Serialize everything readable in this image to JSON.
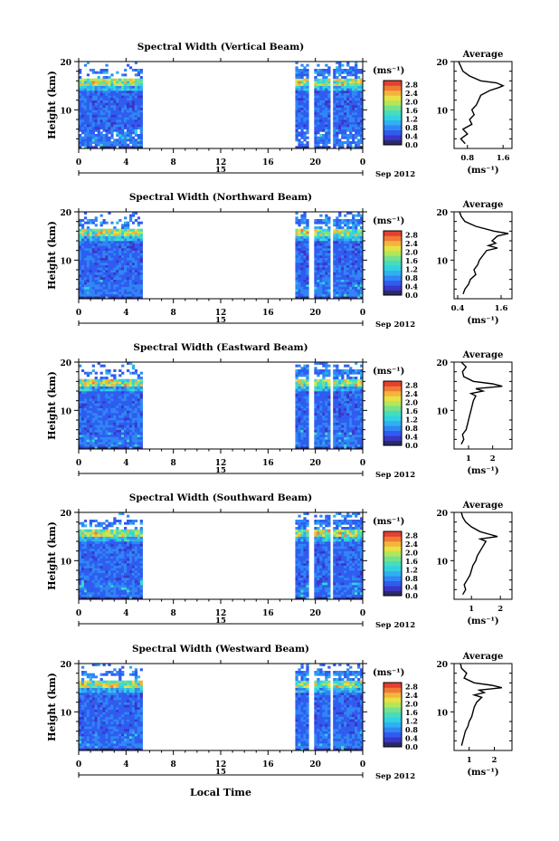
{
  "colors": {
    "background": "#ffffff",
    "axis": "#000000",
    "colormap": [
      "#2a2a6a",
      "#3a36c8",
      "#2f5cf0",
      "#2f86f4",
      "#30b0f0",
      "#30d2e2",
      "#46dcbe",
      "#76e08e",
      "#b0e85a",
      "#e8e044",
      "#f4b43c",
      "#f07a36",
      "#e44030"
    ]
  },
  "shared": {
    "xticks": [
      "0",
      "4",
      "8",
      "12",
      "16",
      "20",
      "0"
    ],
    "date_day": "15",
    "date_label": "Sep 2012",
    "yticks": [
      "20",
      "10"
    ],
    "ylabel": "Height (km)",
    "unit_label": "(ms⁻¹)",
    "colorbar_ticks": [
      "2.8",
      "2.4",
      "2.0",
      "1.6",
      "1.2",
      "0.8",
      "0.4",
      "0.0"
    ],
    "avg_title": "Average",
    "avg_xlabel": "(ms⁻¹)",
    "xlabel": "Local Time"
  },
  "chart_data": [
    {
      "type": "heatmap",
      "title": "Spectral Width (Vertical Beam)",
      "xlabel": "",
      "ylabel": "Height (km)",
      "x_range_hours": [
        0,
        24
      ],
      "y_range_km": [
        2,
        20
      ],
      "data_time_intervals_hours": [
        [
          0,
          5.4
        ],
        [
          18.3,
          24
        ]
      ],
      "colorbar_range": [
        0.0,
        3.0
      ],
      "average_profile": {
        "title": "Average",
        "xlabel": "(ms⁻¹)",
        "xticks": [
          "0.8",
          "1.6"
        ],
        "xlim": [
          0.5,
          1.8
        ],
        "height_km": [
          3,
          4,
          5,
          6,
          7,
          8,
          9,
          10,
          11,
          12,
          13,
          14,
          14.6,
          15,
          15.6,
          16,
          17,
          18,
          19,
          20
        ],
        "values": [
          0.75,
          0.65,
          0.8,
          0.7,
          0.9,
          0.85,
          0.95,
          0.9,
          1.0,
          1.05,
          1.1,
          1.3,
          1.5,
          1.6,
          1.45,
          1.1,
          0.85,
          0.7,
          0.65,
          0.6
        ]
      }
    },
    {
      "type": "heatmap",
      "title": "Spectral Width (Northward Beam)",
      "xlabel": "",
      "ylabel": "Height (km)",
      "x_range_hours": [
        0,
        24
      ],
      "y_range_km": [
        2,
        20
      ],
      "data_time_intervals_hours": [
        [
          0,
          5.4
        ],
        [
          18.3,
          24
        ]
      ],
      "colorbar_range": [
        0.0,
        3.0
      ],
      "average_profile": {
        "title": "Average",
        "xlabel": "(ms⁻¹)",
        "xticks": [
          "0.4",
          "1.6"
        ],
        "xlim": [
          0.3,
          1.9
        ],
        "height_km": [
          3,
          4,
          5,
          6,
          7,
          8,
          9,
          10,
          11,
          12,
          12.5,
          13,
          13.5,
          14,
          15,
          15.5,
          16,
          17,
          18,
          19,
          20
        ],
        "values": [
          0.55,
          0.6,
          0.7,
          0.75,
          0.9,
          0.85,
          0.95,
          1.0,
          1.1,
          1.2,
          1.5,
          1.25,
          1.45,
          1.35,
          1.5,
          1.8,
          1.4,
          0.9,
          0.6,
          0.5,
          0.45
        ]
      }
    },
    {
      "type": "heatmap",
      "title": "Spectral Width (Eastward Beam)",
      "xlabel": "",
      "ylabel": "Height (km)",
      "x_range_hours": [
        0,
        24
      ],
      "y_range_km": [
        2,
        20
      ],
      "data_time_intervals_hours": [
        [
          0,
          5.4
        ],
        [
          18.3,
          24
        ]
      ],
      "colorbar_range": [
        0.0,
        3.0
      ],
      "average_profile": {
        "title": "Average",
        "xlabel": "(ms⁻¹)",
        "xticks": [
          "1",
          "2"
        ],
        "xlim": [
          0.4,
          2.8
        ],
        "height_km": [
          3,
          4,
          5,
          6,
          7,
          8,
          9,
          10,
          11,
          12,
          13,
          13.5,
          14,
          14.5,
          15,
          15.5,
          16,
          17,
          18,
          19,
          20
        ],
        "values": [
          0.7,
          0.8,
          0.75,
          0.9,
          0.95,
          1.0,
          1.05,
          1.1,
          1.15,
          1.2,
          1.3,
          1.1,
          1.6,
          1.3,
          2.4,
          2.0,
          1.2,
          0.8,
          0.75,
          0.9,
          0.7
        ]
      }
    },
    {
      "type": "heatmap",
      "title": "Spectral Width (Southward Beam)",
      "xlabel": "",
      "ylabel": "Height (km)",
      "x_range_hours": [
        0,
        24
      ],
      "y_range_km": [
        2,
        20
      ],
      "data_time_intervals_hours": [
        [
          0,
          5.4
        ],
        [
          18.3,
          24
        ]
      ],
      "colorbar_range": [
        0.0,
        3.0
      ],
      "average_profile": {
        "title": "Average",
        "xlabel": "(ms⁻¹)",
        "xticks": [
          "1",
          "2"
        ],
        "xlim": [
          0.4,
          2.4
        ],
        "height_km": [
          3,
          4,
          5,
          6,
          7,
          8,
          9,
          10,
          11,
          12,
          13,
          14,
          14.5,
          15,
          15.5,
          16,
          17,
          18,
          19,
          20
        ],
        "values": [
          0.7,
          0.8,
          0.75,
          0.85,
          0.95,
          1.0,
          1.05,
          1.15,
          1.2,
          1.3,
          1.4,
          1.5,
          1.3,
          1.9,
          1.6,
          1.3,
          1.0,
          0.8,
          0.7,
          0.65
        ]
      }
    },
    {
      "type": "heatmap",
      "title": "Spectral Width (Westward Beam)",
      "xlabel": "Local Time",
      "ylabel": "Height (km)",
      "x_range_hours": [
        0,
        24
      ],
      "y_range_km": [
        2,
        20
      ],
      "data_time_intervals_hours": [
        [
          0,
          5.4
        ],
        [
          18.3,
          24
        ]
      ],
      "colorbar_range": [
        0.0,
        3.0
      ],
      "average_profile": {
        "title": "Average",
        "xlabel": "(ms⁻¹)",
        "xticks": [
          "1",
          "2"
        ],
        "xlim": [
          0.4,
          2.7
        ],
        "height_km": [
          3,
          4,
          5,
          6,
          7,
          8,
          9,
          10,
          11,
          12,
          13,
          13.5,
          14,
          14.5,
          15,
          15.5,
          16,
          17,
          18,
          19,
          20
        ],
        "values": [
          0.7,
          0.75,
          0.8,
          0.85,
          0.95,
          1.0,
          1.1,
          1.15,
          1.2,
          1.3,
          1.5,
          1.2,
          1.6,
          1.4,
          2.3,
          1.9,
          1.2,
          0.8,
          0.9,
          0.7,
          0.65
        ]
      }
    }
  ]
}
